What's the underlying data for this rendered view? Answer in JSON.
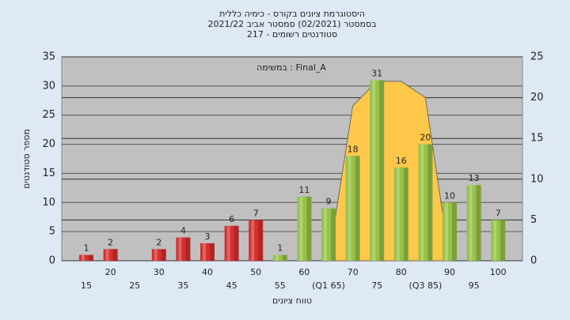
{
  "chart_data": {
    "type": "bar",
    "title": [
      "היסטוגרמת ציונים בקורס - כימיה כללית",
      "בסמסטר  (02/2021)  סמסטר אביב 2021/22",
      "סטודנטים רשומים - 217"
    ],
    "annotation": "במשימה : Final_A",
    "x_label": "טווח ציונים",
    "y_label": "מספר סטודנטים",
    "categories": [
      "15",
      "20",
      "25",
      "30",
      "35",
      "40",
      "45",
      "50",
      "55",
      "60",
      "(Q1 65)",
      "70",
      "75",
      "80",
      "(Q3 85)",
      "90",
      "95",
      "100"
    ],
    "values": [
      1,
      2,
      null,
      2,
      4,
      3,
      6,
      7,
      1,
      11,
      9,
      18,
      31,
      16,
      20,
      10,
      13,
      7
    ],
    "colors": [
      "#d62f2f",
      "#d62f2f",
      "#d62f2f",
      "#d62f2f",
      "#d62f2f",
      "#d62f2f",
      "#d62f2f",
      "#d62f2f",
      "#97c247",
      "#97c247",
      "#97c247",
      "#97c247",
      "#97c247",
      "#97c247",
      "#97c247",
      "#97c247",
      "#97c247",
      "#97c247"
    ],
    "area": {
      "axis": "y2",
      "color": "#ffc84a",
      "values": [
        null,
        null,
        null,
        null,
        null,
        null,
        null,
        null,
        null,
        null,
        0,
        19,
        22,
        22,
        20,
        0,
        null,
        null
      ]
    },
    "ylim": [
      0,
      35
    ],
    "yticks": [
      0,
      5,
      10,
      15,
      20,
      25,
      30,
      35
    ],
    "y2lim": [
      0,
      25
    ],
    "y2ticks": [
      0,
      5,
      10,
      15,
      20,
      25
    ],
    "grid": true
  }
}
